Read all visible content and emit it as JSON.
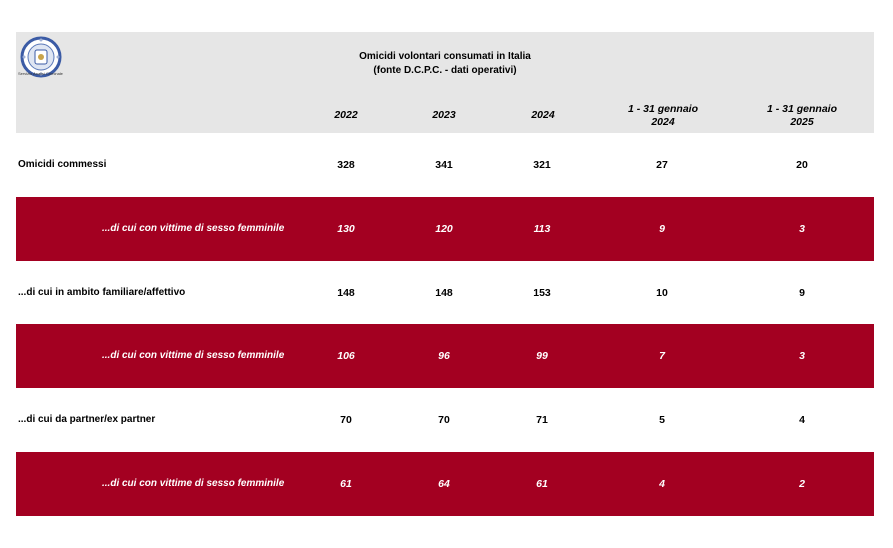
{
  "header": {
    "logo_caption": "Servizio Analisi Criminale",
    "title_line1": "Omicidi volontari consumati in Italia",
    "title_line2": "(fonte D.C.P.C. - dati operativi)"
  },
  "columns": [
    {
      "line1": "2022",
      "line2": ""
    },
    {
      "line1": "2023",
      "line2": ""
    },
    {
      "line1": "2024",
      "line2": ""
    },
    {
      "line1": "1 - 31 gennaio",
      "line2": "2024"
    },
    {
      "line1": "1 - 31 gennaio",
      "line2": "2025"
    }
  ],
  "rows": [
    {
      "label": "Omicidi commessi",
      "values": [
        "328",
        "341",
        "321",
        "27",
        "20"
      ]
    },
    {
      "label": "...di cui con vittime di sesso femminile",
      "values": [
        "130",
        "120",
        "113",
        "9",
        "3"
      ]
    },
    {
      "label": "...di cui in ambito familiare/affettivo",
      "values": [
        "148",
        "148",
        "153",
        "10",
        "9"
      ]
    },
    {
      "label": "...di cui con vittime di sesso femminile",
      "values": [
        "106",
        "96",
        "99",
        "7",
        "3"
      ]
    },
    {
      "label": "...di cui da partner/ex partner",
      "values": [
        "70",
        "70",
        "71",
        "5",
        "4"
      ]
    },
    {
      "label": "...di cui con vittime di sesso femminile",
      "values": [
        "61",
        "64",
        "61",
        "4",
        "2"
      ]
    }
  ],
  "colors": {
    "header_band": "#e6e6e6",
    "highlight_row": "#a30021",
    "highlight_text": "#ffffff"
  }
}
